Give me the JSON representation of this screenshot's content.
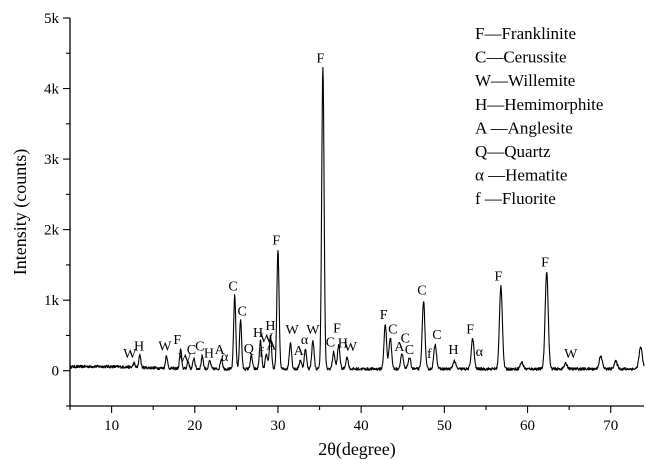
{
  "chart_data": {
    "type": "line",
    "xlabel": "2θ(degree)",
    "ylabel": "Intensity (counts)",
    "xlim": [
      5,
      74
    ],
    "ylim": [
      -500,
      5000
    ],
    "x_ticks": [
      10,
      20,
      30,
      40,
      50,
      60,
      70
    ],
    "y_ticks": [
      {
        "value": 0,
        "label": "0"
      },
      {
        "value": 1000,
        "label": "1k"
      },
      {
        "value": 2000,
        "label": "2k"
      },
      {
        "value": 3000,
        "label": "3k"
      },
      {
        "value": 4000,
        "label": "4k"
      },
      {
        "value": 5000,
        "label": "5k"
      }
    ],
    "grid": false,
    "legend_position": "top-right",
    "legend": [
      "F—Franklinite",
      "C—Cerussite",
      "W—Willemite",
      "H—Hemimorphite",
      "A —Anglesite",
      "Q—Quartz",
      "α —Hematite",
      "f —Fluorite"
    ],
    "peaks": [
      {
        "x": 12.7,
        "y": 110
      },
      {
        "x": 13.4,
        "y": 230
      },
      {
        "x": 16.6,
        "y": 220
      },
      {
        "x": 18.3,
        "y": 300
      },
      {
        "x": 19.2,
        "y": 130
      },
      {
        "x": 19.9,
        "y": 180
      },
      {
        "x": 20.9,
        "y": 210
      },
      {
        "x": 21.8,
        "y": 140
      },
      {
        "x": 23.2,
        "y": 170
      },
      {
        "x": 24.8,
        "y": 1060
      },
      {
        "x": 25.5,
        "y": 720
      },
      {
        "x": 26.8,
        "y": 210
      },
      {
        "x": 27.9,
        "y": 420
      },
      {
        "x": 28.6,
        "y": 230
      },
      {
        "x": 29.1,
        "y": 500
      },
      {
        "x": 30.0,
        "y": 1700
      },
      {
        "x": 31.5,
        "y": 400
      },
      {
        "x": 32.7,
        "y": 150
      },
      {
        "x": 33.3,
        "y": 300
      },
      {
        "x": 34.2,
        "y": 420
      },
      {
        "x": 35.4,
        "y": 4300
      },
      {
        "x": 36.7,
        "y": 260
      },
      {
        "x": 37.3,
        "y": 360
      },
      {
        "x": 38.3,
        "y": 190
      },
      {
        "x": 42.9,
        "y": 650
      },
      {
        "x": 43.5,
        "y": 470
      },
      {
        "x": 44.9,
        "y": 240
      },
      {
        "x": 45.8,
        "y": 180
      },
      {
        "x": 47.5,
        "y": 990
      },
      {
        "x": 48.9,
        "y": 370
      },
      {
        "x": 51.2,
        "y": 140
      },
      {
        "x": 53.4,
        "y": 450
      },
      {
        "x": 56.8,
        "y": 1200
      },
      {
        "x": 59.3,
        "y": 120
      },
      {
        "x": 62.3,
        "y": 1400
      },
      {
        "x": 64.6,
        "y": 100
      },
      {
        "x": 68.8,
        "y": 200
      },
      {
        "x": 70.6,
        "y": 130
      },
      {
        "x": 73.6,
        "y": 330
      }
    ],
    "annotations": [
      {
        "text": "W",
        "x": 12.2,
        "y": 180
      },
      {
        "text": "H",
        "x": 13.3,
        "y": 290
      },
      {
        "text": "W",
        "x": 16.4,
        "y": 290
      },
      {
        "text": "F",
        "x": 17.9,
        "y": 380
      },
      {
        "text": "W",
        "x": 18.8,
        "y": 120
      },
      {
        "text": "C",
        "x": 19.6,
        "y": 240
      },
      {
        "text": "C",
        "x": 20.6,
        "y": 290
      },
      {
        "text": "H",
        "x": 21.7,
        "y": 190
      },
      {
        "text": "A",
        "x": 23.0,
        "y": 240
      },
      {
        "text": "α",
        "x": 23.6,
        "y": 140
      },
      {
        "text": "C",
        "x": 24.6,
        "y": 1140
      },
      {
        "text": "C",
        "x": 25.7,
        "y": 780
      },
      {
        "text": "Q",
        "x": 26.5,
        "y": 250
      },
      {
        "text": "H",
        "x": 27.6,
        "y": 480
      },
      {
        "text": "f",
        "x": 28.0,
        "y": 200
      },
      {
        "text": "W",
        "x": 28.6,
        "y": 400
      },
      {
        "text": "A",
        "x": 29.2,
        "y": 300
      },
      {
        "text": "H",
        "x": 29.1,
        "y": 580
      },
      {
        "text": "F",
        "x": 29.8,
        "y": 1790
      },
      {
        "text": "W",
        "x": 31.7,
        "y": 520
      },
      {
        "text": "A",
        "x": 32.5,
        "y": 220
      },
      {
        "text": "α",
        "x": 33.2,
        "y": 380
      },
      {
        "text": "W",
        "x": 34.2,
        "y": 520
      },
      {
        "text": "F",
        "x": 35.1,
        "y": 4370
      },
      {
        "text": "C",
        "x": 36.3,
        "y": 340
      },
      {
        "text": "F",
        "x": 37.1,
        "y": 540
      },
      {
        "text": "H",
        "x": 37.8,
        "y": 330
      },
      {
        "text": "W",
        "x": 38.7,
        "y": 280
      },
      {
        "text": "F",
        "x": 42.7,
        "y": 730
      },
      {
        "text": "C",
        "x": 43.8,
        "y": 530
      },
      {
        "text": "A",
        "x": 44.6,
        "y": 280
      },
      {
        "text": "C",
        "x": 45.3,
        "y": 400
      },
      {
        "text": "C",
        "x": 45.8,
        "y": 240
      },
      {
        "text": "C",
        "x": 47.3,
        "y": 1080
      },
      {
        "text": "f",
        "x": 48.2,
        "y": 180
      },
      {
        "text": "C",
        "x": 49.1,
        "y": 450
      },
      {
        "text": "H",
        "x": 51.1,
        "y": 240
      },
      {
        "text": "F",
        "x": 53.1,
        "y": 530
      },
      {
        "text": "α",
        "x": 54.2,
        "y": 210
      },
      {
        "text": "F",
        "x": 56.5,
        "y": 1280
      },
      {
        "text": "F",
        "x": 62.1,
        "y": 1480
      },
      {
        "text": "W",
        "x": 65.2,
        "y": 180
      }
    ]
  }
}
